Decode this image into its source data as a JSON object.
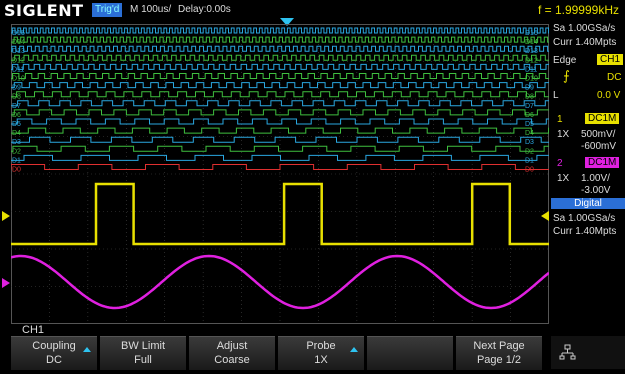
{
  "header": {
    "brand": "SIGLENT",
    "trigger_status": "Trig'd",
    "timebase": "M 100us/",
    "delay": "Delay:0.00s",
    "frequency": "f = 1.99999kHz"
  },
  "digital_channels": [
    "D15",
    "D14",
    "D13",
    "D12",
    "D11",
    "D10",
    "D9",
    "D8",
    "D7",
    "D6",
    "D5",
    "D4",
    "D3",
    "D2",
    "D1",
    "D0"
  ],
  "sidebar": {
    "sample_rate": "Sa 1.00GSa/s",
    "memory_depth": "Curr 1.40Mpts",
    "trigger_type": "Edge",
    "trigger_source": "CH1",
    "trigger_coupling": "DC",
    "trigger_level_label": "L",
    "trigger_level": "0.0 V",
    "ch1_number": "1",
    "ch1_coupling": "DC1M",
    "ch1_probe": "1X",
    "ch1_scale": "500mV/",
    "ch1_offset": "-600mV",
    "ch2_number": "2",
    "ch2_coupling": "DC1M",
    "ch2_probe": "1X",
    "ch2_scale": "1.00V/",
    "ch2_offset": "-3.00V",
    "digital_label": "Digital",
    "digital_sample_rate": "Sa 1.00GSa/s",
    "digital_memory": "Curr 1.40Mpts"
  },
  "menu": {
    "channel": "CH1",
    "coupling_label": "Coupling",
    "coupling_value": "DC",
    "bw_label": "BW Limit",
    "bw_value": "Full",
    "adjust_label": "Adjust",
    "adjust_value": "Coarse",
    "probe_label": "Probe",
    "probe_value": "1X",
    "next_label": "Next Page",
    "next_value": "Page 1/2"
  },
  "colors": {
    "ch1": "#e8e000",
    "ch2": "#e020e0",
    "digital_even": "#2aa7e0",
    "digital_odd": "#3fbf3f",
    "d0": "#e03030"
  }
}
